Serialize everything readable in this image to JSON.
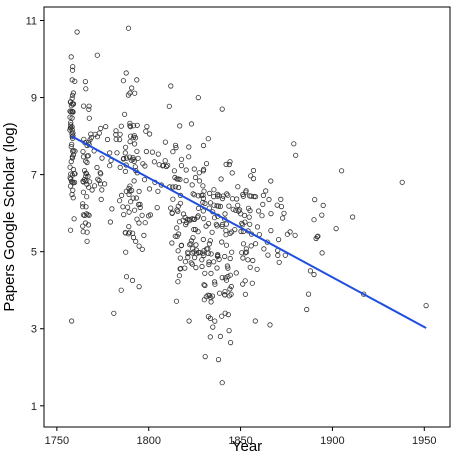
{
  "chart_data": {
    "type": "scatter",
    "title": "",
    "xlabel": "Year",
    "ylabel": "Papers Google Scholar (log)",
    "xlim": [
      1743,
      1964
    ],
    "ylim": [
      0.45,
      11.35
    ],
    "x_ticks": [
      1750,
      1800,
      1850,
      1900,
      1950
    ],
    "y_ticks": [
      1,
      3,
      5,
      7,
      9,
      11
    ],
    "grid": false,
    "legend": "none",
    "point_style": "hollow-circle",
    "fit_line": {
      "x": [
        1758,
        1951
      ],
      "y": [
        8.0,
        3.02
      ],
      "color": "#1f4fe0"
    },
    "point_color": "#333333",
    "clusters": [
      {
        "x": [
          1757,
          1760
        ],
        "y": [
          5.3,
          10.8
        ],
        "n": 60
      },
      {
        "x": [
          1764,
          1768
        ],
        "y": [
          4.3,
          10.2
        ],
        "n": 45
      },
      {
        "x": [
          1768,
          1785
        ],
        "y": [
          5.5,
          9.4
        ],
        "n": 35
      },
      {
        "x": [
          1785,
          1795
        ],
        "y": [
          3.3,
          10.8
        ],
        "n": 70
      },
      {
        "x": [
          1795,
          1815
        ],
        "y": [
          4.5,
          9.4
        ],
        "n": 45
      },
      {
        "x": [
          1815,
          1830
        ],
        "y": [
          3.2,
          9.0
        ],
        "n": 90
      },
      {
        "x": [
          1830,
          1845
        ],
        "y": [
          1.6,
          8.7
        ],
        "n": 100
      },
      {
        "x": [
          1845,
          1860
        ],
        "y": [
          3.2,
          8.1
        ],
        "n": 55
      },
      {
        "x": [
          1860,
          1880
        ],
        "y": [
          3.1,
          8.0
        ],
        "n": 25
      },
      {
        "x": [
          1880,
          1900
        ],
        "y": [
          3.5,
          7.0
        ],
        "n": 8
      }
    ],
    "points": [
      [
        1758,
        3.2
      ],
      [
        1761,
        10.7
      ],
      [
        1772,
        10.1
      ],
      [
        1789,
        10.8
      ],
      [
        1812,
        9.3
      ],
      [
        1827,
        9.0
      ],
      [
        1840,
        8.7
      ],
      [
        1838,
        2.2
      ],
      [
        1840,
        1.6
      ],
      [
        1839,
        2.8
      ],
      [
        1822,
        3.2
      ],
      [
        1781,
        3.4
      ],
      [
        1785,
        4.0
      ],
      [
        1858,
        3.2
      ],
      [
        1866,
        3.1
      ],
      [
        1879,
        7.8
      ],
      [
        1880,
        7.5
      ],
      [
        1886,
        3.5
      ],
      [
        1887,
        3.9
      ],
      [
        1888,
        4.5
      ],
      [
        1895,
        6.2
      ],
      [
        1902,
        5.6
      ],
      [
        1905,
        7.1
      ],
      [
        1911,
        5.9
      ],
      [
        1917,
        3.9
      ],
      [
        1938,
        6.8
      ],
      [
        1951,
        3.6
      ]
    ]
  }
}
